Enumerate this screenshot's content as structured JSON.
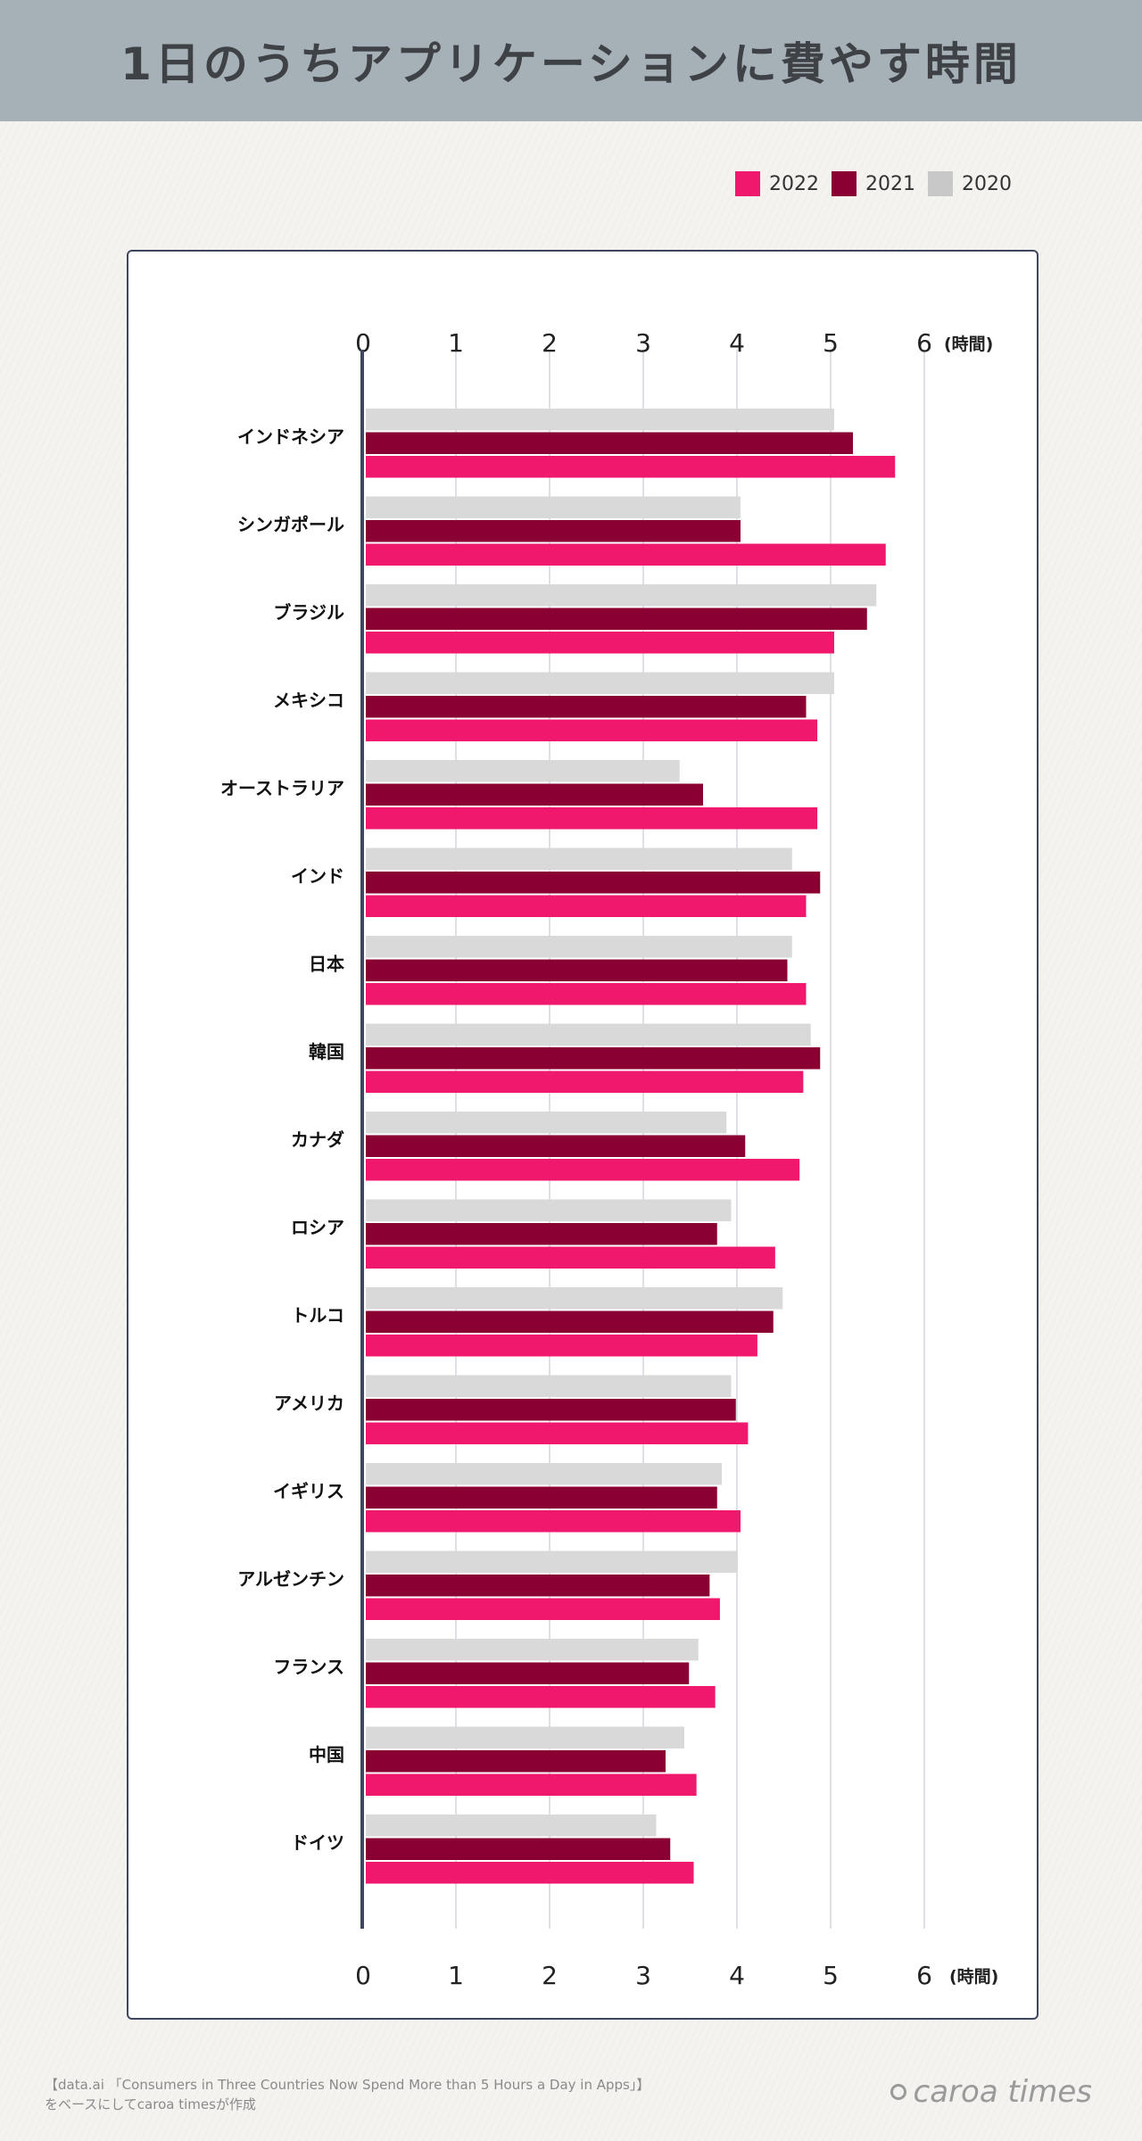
{
  "title": "1日のうちアプリケーションに費やす時間",
  "legend": [
    {
      "label": "2022",
      "color": "#f0186c"
    },
    {
      "label": "2021",
      "color": "#8a0033"
    },
    {
      "label": "2020",
      "color": "#c8c8c8"
    }
  ],
  "footer": {
    "source_line1": "【data.ai 「Consumers in Three Countries Now Spend More than 5 Hours a Day in Apps」】",
    "source_line2": "をベースにしてcaroa timesが作成",
    "brand": "caroa times"
  },
  "chart_data": {
    "type": "bar",
    "orientation": "horizontal",
    "title": "1日のうちアプリケーションに費やす時間",
    "xlabel": "(時間)",
    "ylabel": "",
    "xlim": [
      0,
      6
    ],
    "xticks": [
      "0",
      "1",
      "2",
      "3",
      "4",
      "5",
      "6"
    ],
    "grid": true,
    "legend_position": "top-right",
    "categories": [
      "インドネシア",
      "シンガポール",
      "ブラジル",
      "メキシコ",
      "オーストラリア",
      "インド",
      "日本",
      "韓国",
      "カナダ",
      "ロシア",
      "トルコ",
      "アメリカ",
      "イギリス",
      "アルゼンチン",
      "フランス",
      "中国",
      "ドイツ"
    ],
    "series": [
      {
        "name": "2020",
        "color": "#d9d9d9",
        "values": [
          5.0,
          4.0,
          5.45,
          5.0,
          3.35,
          4.55,
          4.55,
          4.75,
          3.85,
          3.9,
          4.45,
          3.9,
          3.8,
          3.97,
          3.55,
          3.4,
          3.1
        ]
      },
      {
        "name": "2021",
        "color": "#8a0033",
        "values": [
          5.2,
          4.0,
          5.35,
          4.7,
          3.6,
          4.85,
          4.5,
          4.85,
          4.05,
          3.75,
          4.35,
          3.95,
          3.75,
          3.67,
          3.45,
          3.2,
          3.25
        ]
      },
      {
        "name": "2022",
        "color": "#f0186c",
        "values": [
          5.65,
          5.55,
          5.0,
          4.82,
          4.82,
          4.7,
          4.7,
          4.67,
          4.63,
          4.37,
          4.18,
          4.08,
          4.0,
          3.78,
          3.73,
          3.53,
          3.5
        ]
      }
    ]
  }
}
